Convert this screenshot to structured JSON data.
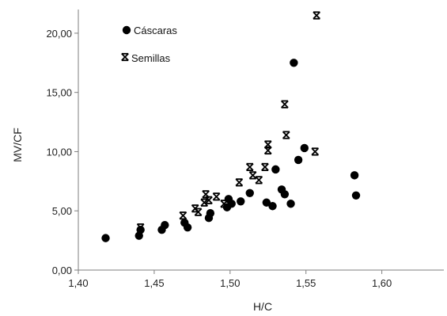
{
  "chart_data": {
    "type": "scatter",
    "title": "",
    "xlabel": "H/C",
    "ylabel": "MV/CF",
    "xlim": [
      1.4,
      1.62
    ],
    "ylim": [
      0,
      22
    ],
    "x_ticks": [
      1.4,
      1.45,
      1.5,
      1.55,
      1.6
    ],
    "x_tick_labels": [
      "1,40",
      "1,45",
      "1,50",
      "1,55",
      "1,60"
    ],
    "y_ticks": [
      0,
      5,
      10,
      15,
      20
    ],
    "y_tick_labels": [
      "0,00",
      "5,00",
      "10,00",
      "15,00",
      "20,00"
    ],
    "grid": false,
    "legend_position": "top-left",
    "series": [
      {
        "name": "Cáscaras",
        "marker": "circle",
        "color": "#000000",
        "points": [
          [
            1.418,
            2.7
          ],
          [
            1.44,
            2.9
          ],
          [
            1.441,
            3.4
          ],
          [
            1.455,
            3.4
          ],
          [
            1.457,
            3.8
          ],
          [
            1.47,
            4.0
          ],
          [
            1.472,
            3.6
          ],
          [
            1.486,
            4.4
          ],
          [
            1.487,
            4.8
          ],
          [
            1.498,
            5.3
          ],
          [
            1.499,
            6.0
          ],
          [
            1.501,
            5.6
          ],
          [
            1.507,
            5.8
          ],
          [
            1.513,
            6.5
          ],
          [
            1.524,
            5.7
          ],
          [
            1.528,
            5.4
          ],
          [
            1.53,
            8.5
          ],
          [
            1.534,
            6.8
          ],
          [
            1.536,
            6.4
          ],
          [
            1.54,
            5.6
          ],
          [
            1.542,
            17.5
          ],
          [
            1.545,
            9.3
          ],
          [
            1.549,
            10.3
          ],
          [
            1.582,
            8.0
          ],
          [
            1.583,
            6.3
          ]
        ]
      },
      {
        "name": "Semillas",
        "marker": "x-bar",
        "color": "#000000",
        "points": [
          [
            1.441,
            3.6
          ],
          [
            1.469,
            4.6
          ],
          [
            1.477,
            5.2
          ],
          [
            1.479,
            4.9
          ],
          [
            1.483,
            5.7
          ],
          [
            1.484,
            6.4
          ],
          [
            1.486,
            5.9
          ],
          [
            1.491,
            6.2
          ],
          [
            1.496,
            5.6
          ],
          [
            1.506,
            7.4
          ],
          [
            1.513,
            8.7
          ],
          [
            1.515,
            8.0
          ],
          [
            1.519,
            7.6
          ],
          [
            1.523,
            8.7
          ],
          [
            1.525,
            10.1
          ],
          [
            1.525,
            10.6
          ],
          [
            1.536,
            14.0
          ],
          [
            1.537,
            11.4
          ],
          [
            1.556,
            10.0
          ],
          [
            1.557,
            21.5
          ]
        ]
      }
    ]
  }
}
